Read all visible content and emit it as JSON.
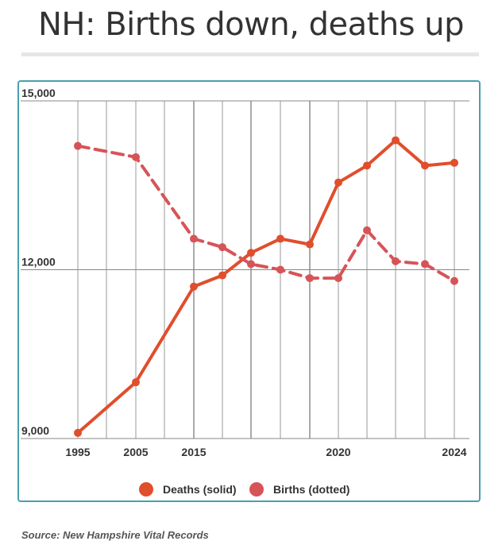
{
  "title": "NH: Births down, deaths up",
  "source": "Source: New Hampshire Vital Records",
  "chart_data": {
    "type": "line",
    "x_ticks": [
      "1995",
      "2005",
      "2015",
      "2020",
      "2024"
    ],
    "y_ticks": [
      "15,000",
      "12,000",
      "9,000"
    ],
    "ylim": [
      9000,
      15000
    ],
    "grid": true,
    "legend_position": "bottom",
    "x": [
      1995,
      2005,
      2015,
      2016,
      2017,
      2018,
      2019,
      2020,
      2021,
      2022,
      2023,
      2024
    ],
    "series": [
      {
        "name": "Deaths (solid)",
        "color": "#e04e2c",
        "style": "solid",
        "values": [
          9100,
          10000,
          11700,
          11900,
          12300,
          12550,
          12450,
          13550,
          13850,
          14300,
          13850,
          13900
        ]
      },
      {
        "name": "Births (dotted)",
        "color": "#d65458",
        "style": "dashed",
        "values": [
          14200,
          14000,
          12550,
          12400,
          12100,
          12000,
          11850,
          11850,
          12700,
          12150,
          12100,
          11800
        ]
      }
    ]
  }
}
